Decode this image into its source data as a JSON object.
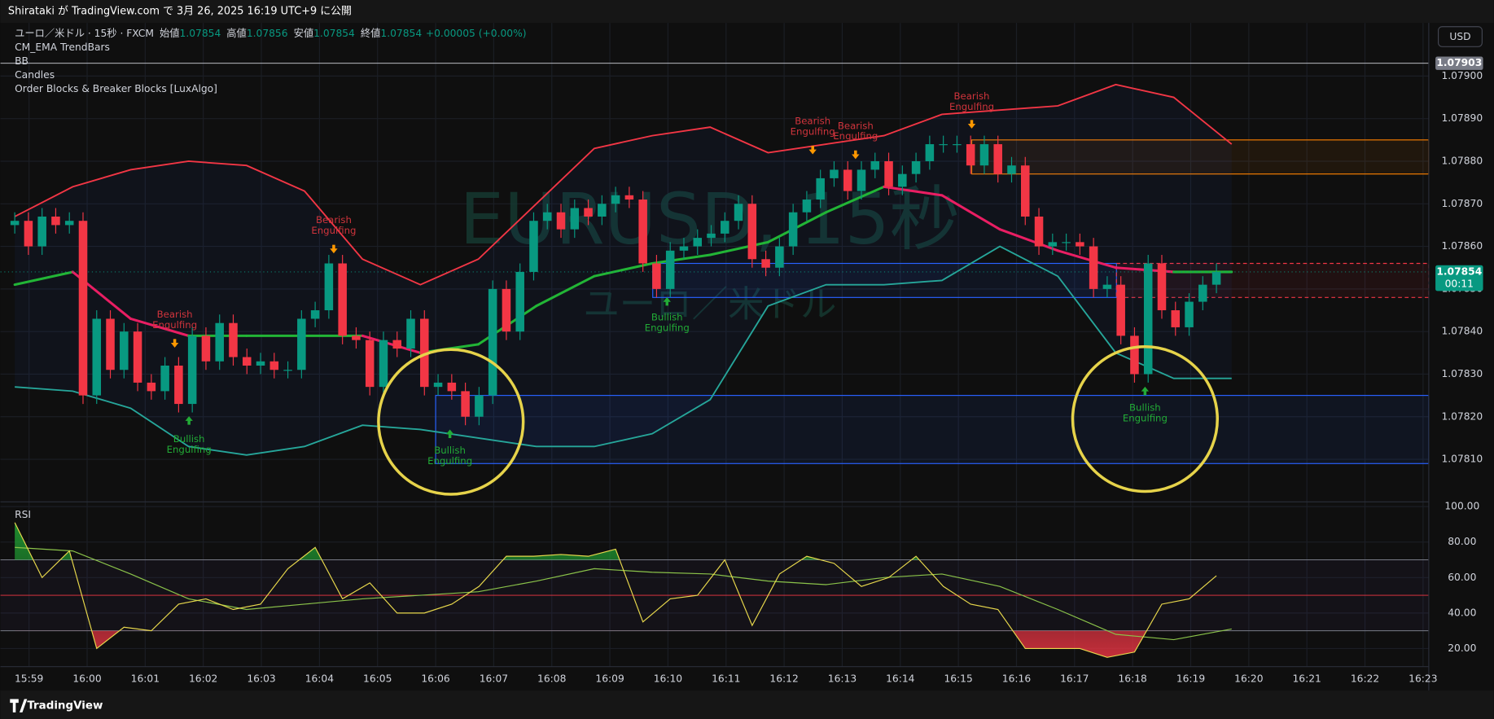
{
  "header": {
    "publish": "Shirataki が TradingView.com で 3月 26, 2025 16:19 UTC+9 に公開",
    "symbol": "ユーロ／米ドル · 15秒 · FXCM",
    "ohlc": [
      {
        "label": "始値",
        "value": 1.07854
      },
      {
        "label": "高値",
        "value": 1.07856
      },
      {
        "label": "安値",
        "value": 1.07854
      },
      {
        "label": "終値",
        "value": 1.07854
      }
    ],
    "change": "+0.00005 (+0.00%)",
    "indicators": [
      "CM_EMA TrendBars",
      "BB",
      "Candles",
      "Order Blocks & Breaker Blocks [LuxAlgo]"
    ],
    "currency": "USD",
    "watermark": [
      "EURUSD, 15秒",
      "ユーロ／米ドル"
    ]
  },
  "footer": {
    "logo": "TradingView"
  },
  "chart_data": [
    {
      "type": "candlestick",
      "up_color": "#089981",
      "down_color": "#f23645",
      "ylim": [
        1.078,
        1.07912
      ],
      "yticks": [
        {
          "value": 1.0781,
          "label": "1.07810"
        },
        {
          "value": 1.0782,
          "label": "1.07820"
        },
        {
          "value": 1.0783,
          "label": "1.07830"
        },
        {
          "value": 1.0784,
          "label": "1.07840"
        },
        {
          "value": 1.0785,
          "label": "1.07850"
        },
        {
          "value": 1.0786,
          "label": "1.07860"
        },
        {
          "value": 1.0787,
          "label": "1.07870"
        },
        {
          "value": 1.0788,
          "label": "1.07880"
        },
        {
          "value": 1.0789,
          "label": "1.07890"
        },
        {
          "value": 1.079,
          "label": "1.07900"
        }
      ],
      "open": [
        1.07865,
        1.07866,
        1.0786,
        1.07867,
        1.07865,
        1.07866,
        1.07825,
        1.07843,
        1.07831,
        1.0784,
        1.07828,
        1.07826,
        1.07832,
        1.07823,
        1.07839,
        1.07833,
        1.07842,
        1.07834,
        1.07832,
        1.07833,
        1.07831,
        1.07831,
        1.07843,
        1.07845,
        1.07856,
        1.07839,
        1.07838,
        1.07827,
        1.07838,
        1.07836,
        1.07843,
        1.07827,
        1.07828,
        1.07826,
        1.0782,
        1.07825,
        1.0785,
        1.0784,
        1.07854,
        1.07866,
        1.07868,
        1.07864,
        1.07869,
        1.07867,
        1.0787,
        1.07872,
        1.07871,
        1.07856,
        1.0785,
        1.07859,
        1.0786,
        1.07862,
        1.07863,
        1.07866,
        1.0787,
        1.07857,
        1.07855,
        1.0786,
        1.07868,
        1.07871,
        1.07876,
        1.07878,
        1.07873,
        1.07878,
        1.0788,
        1.07874,
        1.07877,
        1.0788,
        1.07884,
        1.07884,
        1.07884,
        1.07879,
        1.07884,
        1.07877,
        1.07879,
        1.07867,
        1.0786,
        1.07861,
        1.07861,
        1.0786,
        1.0785,
        1.07851,
        1.07839,
        1.0783,
        1.07856,
        1.07845,
        1.07841,
        1.07847,
        1.07851
      ],
      "high": [
        1.07868,
        1.07868,
        1.07869,
        1.07869,
        1.07868,
        1.07868,
        1.07845,
        1.07845,
        1.07842,
        1.07842,
        1.0783,
        1.07834,
        1.07834,
        1.07841,
        1.07841,
        1.07844,
        1.07844,
        1.07836,
        1.07835,
        1.07835,
        1.07833,
        1.07845,
        1.07847,
        1.07858,
        1.07858,
        1.07841,
        1.0784,
        1.0784,
        1.0784,
        1.07845,
        1.07845,
        1.0783,
        1.0783,
        1.07828,
        1.07827,
        1.07852,
        1.07852,
        1.07856,
        1.07868,
        1.0787,
        1.0787,
        1.07871,
        1.07871,
        1.07872,
        1.07874,
        1.07874,
        1.07873,
        1.07858,
        1.07861,
        1.07862,
        1.07864,
        1.07865,
        1.07868,
        1.07872,
        1.07872,
        1.07859,
        1.07862,
        1.0787,
        1.07873,
        1.07878,
        1.0788,
        1.0788,
        1.0788,
        1.07882,
        1.07882,
        1.07879,
        1.07882,
        1.07886,
        1.07886,
        1.07886,
        1.07886,
        1.07886,
        1.07886,
        1.07881,
        1.07881,
        1.07869,
        1.07863,
        1.07863,
        1.07863,
        1.07862,
        1.07853,
        1.07853,
        1.07841,
        1.07858,
        1.07858,
        1.07847,
        1.07849,
        1.07853,
        1.07856
      ],
      "low": [
        1.07863,
        1.07858,
        1.07858,
        1.07863,
        1.07863,
        1.07823,
        1.07823,
        1.07829,
        1.07829,
        1.07826,
        1.07824,
        1.07824,
        1.07821,
        1.07821,
        1.07831,
        1.07831,
        1.07832,
        1.0783,
        1.0783,
        1.07829,
        1.07829,
        1.07829,
        1.07841,
        1.07843,
        1.07837,
        1.07836,
        1.07825,
        1.07825,
        1.07834,
        1.07834,
        1.07825,
        1.07825,
        1.07824,
        1.07818,
        1.07818,
        1.07823,
        1.07838,
        1.07838,
        1.07852,
        1.07864,
        1.07862,
        1.07862,
        1.07865,
        1.07865,
        1.07868,
        1.07869,
        1.07854,
        1.07848,
        1.07848,
        1.07857,
        1.07858,
        1.0786,
        1.07861,
        1.07864,
        1.07855,
        1.07853,
        1.07853,
        1.07858,
        1.07866,
        1.07869,
        1.07874,
        1.07871,
        1.07871,
        1.07876,
        1.07872,
        1.07872,
        1.07875,
        1.07878,
        1.07882,
        1.07882,
        1.07877,
        1.07877,
        1.07875,
        1.07875,
        1.07865,
        1.07858,
        1.07858,
        1.07859,
        1.07858,
        1.07848,
        1.07848,
        1.07837,
        1.07828,
        1.07828,
        1.07843,
        1.07839,
        1.07839,
        1.07845,
        1.07849
      ],
      "close": [
        1.07866,
        1.0786,
        1.07867,
        1.07865,
        1.07866,
        1.07825,
        1.07843,
        1.07831,
        1.0784,
        1.07828,
        1.07826,
        1.07832,
        1.07823,
        1.07839,
        1.07833,
        1.07842,
        1.07834,
        1.07832,
        1.07833,
        1.07831,
        1.07831,
        1.07843,
        1.07845,
        1.07856,
        1.07839,
        1.07838,
        1.07827,
        1.07838,
        1.07836,
        1.07843,
        1.07827,
        1.07828,
        1.07826,
        1.0782,
        1.07825,
        1.0785,
        1.0784,
        1.07854,
        1.07866,
        1.07868,
        1.07864,
        1.07869,
        1.07867,
        1.0787,
        1.07872,
        1.07871,
        1.07856,
        1.0785,
        1.07859,
        1.0786,
        1.07862,
        1.07863,
        1.07866,
        1.0787,
        1.07857,
        1.07855,
        1.0786,
        1.07868,
        1.07871,
        1.07876,
        1.07878,
        1.07873,
        1.07878,
        1.0788,
        1.07874,
        1.07877,
        1.0788,
        1.07884,
        1.07884,
        1.07884,
        1.07879,
        1.07884,
        1.07877,
        1.07879,
        1.07867,
        1.0786,
        1.07861,
        1.07861,
        1.0786,
        1.0785,
        1.07851,
        1.07839,
        1.0783,
        1.07856,
        1.07845,
        1.07841,
        1.07847,
        1.07851,
        1.07854
      ],
      "bb_upper": {
        "color": "#f23645",
        "values": [
          1.07867,
          1.07874,
          1.07878,
          1.0788,
          1.07879,
          1.07873,
          1.07857,
          1.07851,
          1.07857,
          1.0787,
          1.07883,
          1.07886,
          1.07888,
          1.07882,
          1.07884,
          1.07886,
          1.07891,
          1.07892,
          1.07893,
          1.07898,
          1.07895,
          1.07884
        ]
      },
      "bb_lower": {
        "color": "#26a69a",
        "values": [
          1.07827,
          1.07826,
          1.07822,
          1.07813,
          1.07811,
          1.07813,
          1.07818,
          1.07817,
          1.07815,
          1.07813,
          1.07813,
          1.07816,
          1.07824,
          1.07846,
          1.07851,
          1.07851,
          1.07852,
          1.0786,
          1.07853,
          1.07835,
          1.07829,
          1.07829
        ]
      },
      "basis": {
        "up_color": "#22b536",
        "down_color": "#e91e63",
        "values": [
          1.07851,
          1.07854,
          1.07843,
          1.07839,
          1.07839,
          1.07839,
          1.07839,
          1.07835,
          1.07837,
          1.07846,
          1.07853,
          1.07856,
          1.07858,
          1.07861,
          1.07868,
          1.07874,
          1.07872,
          1.07864,
          1.07859,
          1.07855,
          1.07854,
          1.07854
        ]
      },
      "zones": [
        {
          "top": 1.07856,
          "bottom": 1.07848,
          "color": "#2962ff"
        },
        {
          "top": 1.07825,
          "bottom": 1.07809,
          "color": "#2962ff"
        },
        {
          "top": 1.07885,
          "bottom": 1.07877,
          "color": "#f57c00"
        },
        {
          "top": 1.07856,
          "bottom": 1.07848,
          "color": "#f23645",
          "dashed": true
        }
      ],
      "price_labels": [
        {
          "value": 1.07903,
          "color": "#787b86"
        },
        {
          "value": 1.07854,
          "color": "#089981",
          "countdown": "00:11"
        }
      ],
      "annotations": [
        {
          "text": [
            "Bearish",
            "Engulfing"
          ],
          "color": "#d0343c",
          "arrow": "#ff9800"
        },
        {
          "text": [
            "Bearish",
            "Engulfing"
          ],
          "color": "#d0343c",
          "arrow": "#ff9800"
        },
        {
          "text": [
            "Bearish",
            "Engulfing"
          ],
          "color": "#d0343c",
          "arrow": "#ff9800"
        },
        {
          "text": [
            "Bearish",
            "Engulfing"
          ],
          "color": "#d0343c",
          "arrow": "#ff9800"
        },
        {
          "text": [
            "Bearish",
            "Engulfing"
          ],
          "color": "#d0343c",
          "arrow": "#ff9800"
        },
        {
          "text": [
            "Bullish",
            "Engulfing"
          ],
          "color": "#22ab36",
          "arrow": "#22ab36"
        },
        {
          "text": [
            "Bullish",
            "Engulfing"
          ],
          "color": "#22ab36",
          "arrow": "#22ab36"
        },
        {
          "text": [
            "Bullish",
            "Engulfing"
          ],
          "color": "#22ab36",
          "arrow": "#22ab36"
        },
        {
          "text": [
            "Bullish",
            "Engulfing"
          ],
          "color": "#22ab36",
          "arrow": "#22ab36"
        }
      ]
    },
    {
      "type": "line",
      "title": "RSI",
      "ylim": [
        10,
        102.5
      ],
      "yticks": [
        {
          "value": 20,
          "label": "20.00"
        },
        {
          "value": 40,
          "label": "40.00"
        },
        {
          "value": 60,
          "label": "60.00"
        },
        {
          "value": 80,
          "label": "80.00"
        },
        {
          "value": 100,
          "label": "100.00"
        }
      ],
      "xticks": [
        "15:59",
        "16:00",
        "16:01",
        "16:02",
        "16:03",
        "16:04",
        "16:05",
        "16:06",
        "16:07",
        "16:08",
        "16:09",
        "16:10",
        "16:11",
        "16:12",
        "16:13",
        "16:14",
        "16:15",
        "16:16",
        "16:17",
        "16:18",
        "16:19",
        "16:20",
        "16:21",
        "16:22",
        "16:23"
      ],
      "rsi": {
        "color": "#e8d84c",
        "values": [
          91,
          60,
          75,
          20,
          32,
          30,
          45,
          48,
          42,
          45,
          65,
          77,
          48,
          57,
          40,
          40,
          45,
          55,
          72,
          72,
          73,
          72,
          76,
          35,
          48,
          50,
          70,
          33,
          62,
          72,
          68,
          55,
          60,
          72,
          55,
          45,
          42,
          20,
          20,
          20,
          15,
          18,
          45,
          48,
          61
        ]
      },
      "ma": {
        "color": "#8bc34a",
        "values": [
          77,
          75,
          62,
          48,
          42,
          45,
          48,
          50,
          52,
          58,
          65,
          63,
          62,
          58,
          56,
          60,
          62,
          55,
          42,
          28,
          25,
          31
        ]
      },
      "levels": [
        {
          "value": 70,
          "color": "#787b86"
        },
        {
          "value": 50,
          "color": "#f23645"
        },
        {
          "value": 30,
          "color": "#787b86"
        }
      ],
      "overbought_color": "#22ab36",
      "oversold_color": "#f23645"
    }
  ]
}
